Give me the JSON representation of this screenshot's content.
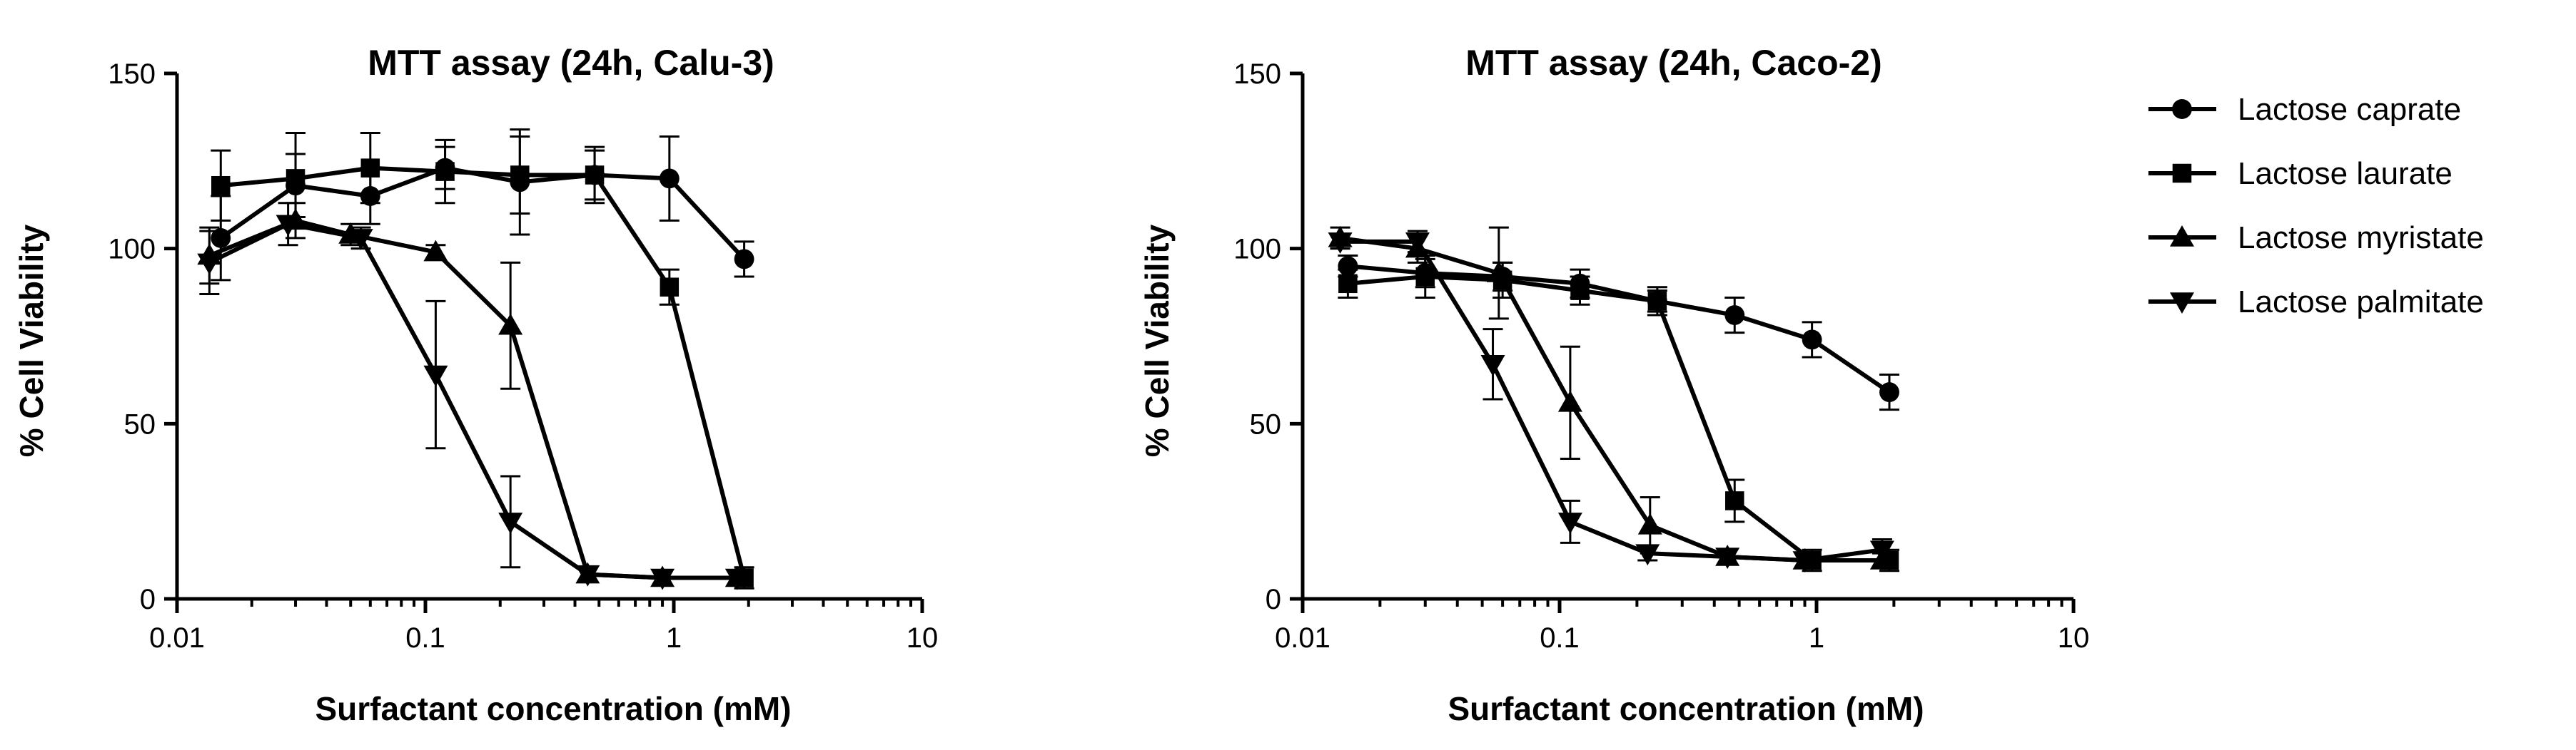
{
  "chart_data": [
    {
      "type": "line",
      "title": "MTT assay (24h, Calu-3)",
      "xlabel": "Surfactant concentration (mM)",
      "ylabel": "% Cell Viability",
      "xscale": "log",
      "xlim": [
        0.01,
        10
      ],
      "ylim": [
        0,
        150
      ],
      "xticks": [
        "0.01",
        "0.1",
        "1",
        "10"
      ],
      "yticks": [
        "0",
        "50",
        "100",
        "150"
      ],
      "grid": false,
      "series": [
        {
          "name": "Lactose caprate",
          "marker": "circle",
          "x": [
            0.015,
            0.03,
            0.06,
            0.12,
            0.24,
            0.48,
            0.96,
            1.92
          ],
          "y": [
            103,
            118,
            115,
            123,
            119,
            121,
            120,
            97
          ],
          "err": [
            12,
            9,
            8,
            6,
            15,
            7,
            12,
            5
          ]
        },
        {
          "name": "Lactose laurate",
          "marker": "square",
          "x": [
            0.015,
            0.03,
            0.06,
            0.12,
            0.24,
            0.48,
            0.96,
            1.92
          ],
          "y": [
            118,
            120,
            123,
            122,
            121,
            121,
            89,
            6
          ],
          "err": [
            10,
            13,
            10,
            9,
            11,
            8,
            5,
            3
          ]
        },
        {
          "name": "Lactose myristate",
          "marker": "triangle-up",
          "x": [
            0.0135,
            0.03,
            0.05,
            0.11,
            0.22,
            0.45,
            0.9,
            1.8
          ],
          "y": [
            98,
            108,
            104,
            99,
            78,
            7,
            6,
            6
          ],
          "err": [
            8,
            5,
            3,
            2,
            18,
            2,
            2,
            2
          ]
        },
        {
          "name": "Lactose palmitate",
          "marker": "triangle-down",
          "x": [
            0.0135,
            0.028,
            0.055,
            0.11,
            0.22,
            0.45,
            0.9,
            1.8
          ],
          "y": [
            96,
            107,
            103,
            64,
            22,
            7,
            6,
            6
          ],
          "err": [
            9,
            6,
            3,
            21,
            13,
            2,
            2,
            2
          ]
        }
      ]
    },
    {
      "type": "line",
      "title": "MTT assay (24h, Caco-2)",
      "xlabel": "Surfactant concentration (mM)",
      "ylabel": "% Cell Viability",
      "xscale": "log",
      "xlim": [
        0.01,
        10
      ],
      "ylim": [
        0,
        150
      ],
      "xticks": [
        "0.01",
        "0.1",
        "1",
        "10"
      ],
      "yticks": [
        "0",
        "50",
        "100",
        "150"
      ],
      "grid": false,
      "legend": "right",
      "series": [
        {
          "name": "Lactose caprate",
          "marker": "circle",
          "x": [
            0.015,
            0.03,
            0.06,
            0.12,
            0.24,
            0.48,
            0.96,
            1.92
          ],
          "y": [
            95,
            93,
            92,
            90,
            85,
            81,
            74,
            59
          ],
          "err": [
            3,
            4,
            4,
            4,
            4,
            5,
            5,
            5
          ]
        },
        {
          "name": "Lactose laurate",
          "marker": "square",
          "x": [
            0.015,
            0.03,
            0.06,
            0.12,
            0.24,
            0.48,
            0.96,
            1.92
          ],
          "y": [
            90,
            92,
            91,
            88,
            85,
            28,
            11,
            11
          ],
          "err": [
            4,
            6,
            5,
            4,
            3,
            6,
            3,
            3
          ]
        },
        {
          "name": "Lactose myristate",
          "marker": "triangle-up",
          "x": [
            0.014,
            0.028,
            0.058,
            0.11,
            0.225,
            0.45,
            0.9,
            1.8
          ],
          "y": [
            103,
            100,
            93,
            56,
            21,
            12,
            11,
            11
          ],
          "err": [
            3,
            4,
            13,
            16,
            8,
            2,
            2,
            2
          ]
        },
        {
          "name": "Lactose palmitate",
          "marker": "triangle-down",
          "x": [
            0.014,
            0.028,
            0.055,
            0.11,
            0.22,
            0.45,
            0.9,
            1.8
          ],
          "y": [
            102,
            102,
            67,
            22,
            13,
            12,
            11,
            14
          ],
          "err": [
            2,
            3,
            10,
            6,
            2,
            2,
            2,
            3
          ]
        }
      ]
    }
  ]
}
